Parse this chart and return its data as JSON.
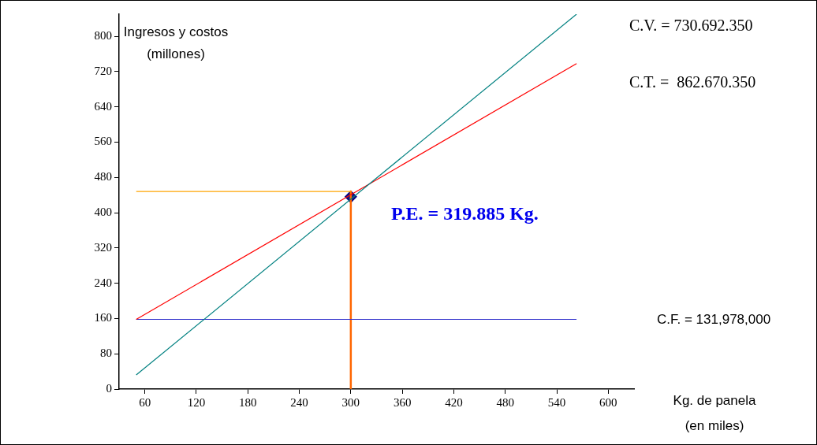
{
  "chart_data": {
    "type": "line",
    "xlabel": "Kg. de panela (en miles)",
    "ylabel": "Ingresos y costos (millones)",
    "xlim": [
      30,
      630
    ],
    "xticks": [
      60,
      120,
      180,
      240,
      300,
      360,
      420,
      480,
      540,
      600
    ],
    "ylim": [
      0,
      850
    ],
    "yticks": [
      0,
      80,
      160,
      240,
      320,
      400,
      480,
      560,
      640,
      720,
      800
    ],
    "grid": false,
    "legend": false,
    "marker": "none",
    "series": [
      {
        "type": "line",
        "color": "#008080",
        "x": [
          50,
          563
        ],
        "values": [
          32,
          850
        ]
      },
      {
        "type": "line",
        "color": "#ff0000",
        "x": [
          50,
          563
        ],
        "values": [
          158,
          738
        ]
      },
      {
        "type": "line",
        "color": "#3333cc",
        "x": [
          50,
          563
        ],
        "values": [
          158,
          158
        ]
      },
      {
        "type": "line",
        "color": "#ffa500",
        "x": [
          50,
          300
        ],
        "values": [
          448,
          448
        ]
      },
      {
        "type": "line",
        "color": "#ff6600",
        "x": [
          300,
          300
        ],
        "values": [
          448,
          0
        ]
      },
      {
        "type": "scatter",
        "color": "#1a1a80",
        "marker": "diamond",
        "x": [
          300
        ],
        "values": [
          436
        ]
      }
    ],
    "annotations": [
      "C.V. = 730.692.350",
      "C.T. =  862.670.350",
      "P.E. = 319.885 Kg.",
      "C.F. = 131,978,000"
    ]
  }
}
